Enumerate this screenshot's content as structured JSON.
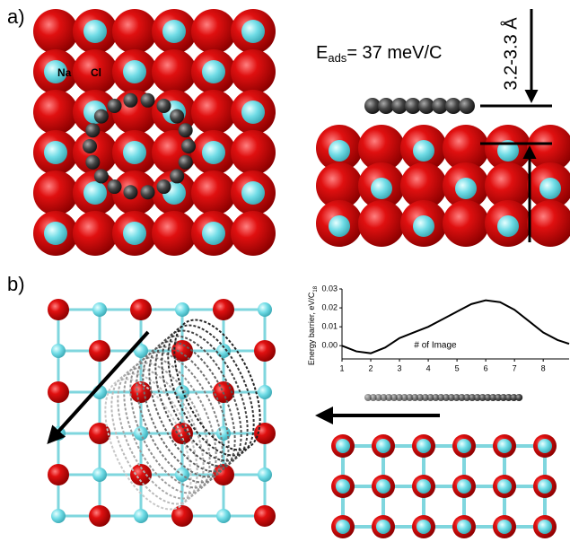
{
  "panel_a": {
    "label": "a)",
    "na": "Na",
    "cl": "Cl",
    "e": "E",
    "ads": "ads",
    "energy": "= 37 meV/C",
    "distance": "3.2-3.3 Å"
  },
  "panel_b": {
    "label": "b)"
  },
  "chart_data": {
    "type": "line",
    "y_label": "Energy barrier, eV/C",
    "y_label_sub": "18",
    "x_label": "# of Image",
    "x": [
      1,
      1.5,
      2,
      2.5,
      3,
      3.5,
      4,
      4.5,
      5,
      5.5,
      6,
      6.5,
      7,
      7.5,
      8,
      8.5,
      8.9
    ],
    "values": [
      0.0,
      -0.003,
      -0.004,
      -0.001,
      0.004,
      0.007,
      0.01,
      0.014,
      0.018,
      0.022,
      0.024,
      0.023,
      0.019,
      0.013,
      0.007,
      0.003,
      0.001
    ],
    "color": "#000000",
    "xlim": [
      1,
      8.9
    ],
    "xticks": [
      1,
      2,
      3,
      4,
      5,
      6,
      7,
      8
    ],
    "ylim": [
      -0.007,
      0.03
    ],
    "yticks": [
      {
        "value": 0,
        "label": "0.00"
      },
      0.01,
      0.02,
      0.03
    ]
  }
}
